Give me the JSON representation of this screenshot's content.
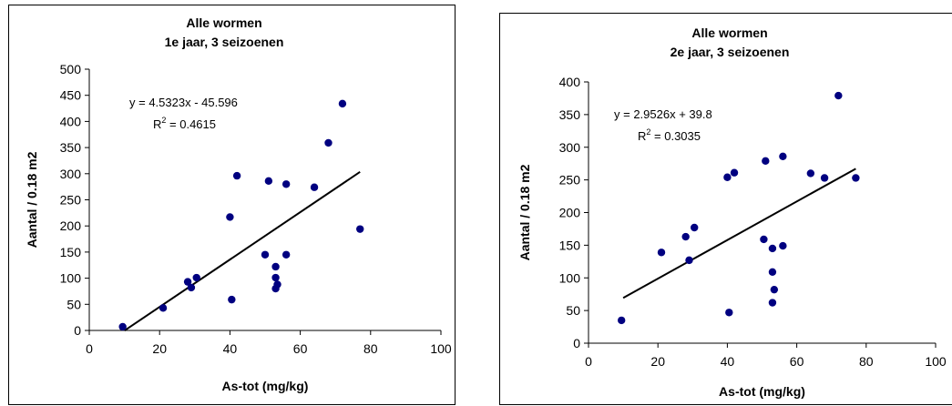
{
  "chart_data": [
    {
      "type": "scatter",
      "title": "Alle wormen",
      "subtitle": "1e jaar, 3 seizoenen",
      "xlabel": "As-tot (mg/kg)",
      "ylabel": "Aantal / 0.18 m2",
      "xlim": [
        0,
        100
      ],
      "ylim": [
        0,
        500
      ],
      "xticks": [
        "0",
        "20",
        "40",
        "60",
        "80",
        "100"
      ],
      "yticks": [
        "0",
        "50",
        "100",
        "150",
        "200",
        "250",
        "300",
        "350",
        "400",
        "450",
        "500"
      ],
      "grid": false,
      "legend": "none",
      "marker_color": "#000080",
      "trendline": {
        "slope": 4.5323,
        "intercept": -45.596,
        "x_range": [
          10,
          77
        ]
      },
      "equation": "y = 4.5323x - 45.596",
      "r2_label": "R",
      "r2_sup": "2",
      "r2_value": " = 0.4615",
      "points": [
        [
          9.5,
          7
        ],
        [
          21,
          43
        ],
        [
          28,
          93
        ],
        [
          29,
          82
        ],
        [
          30.5,
          101
        ],
        [
          40,
          217
        ],
        [
          40.5,
          59
        ],
        [
          42,
          296
        ],
        [
          50,
          145
        ],
        [
          51,
          286
        ],
        [
          53,
          122
        ],
        [
          53,
          101
        ],
        [
          53,
          80
        ],
        [
          53.5,
          88
        ],
        [
          56,
          145
        ],
        [
          56,
          280
        ],
        [
          64,
          274
        ],
        [
          68,
          359
        ],
        [
          72,
          434
        ],
        [
          77,
          194
        ]
      ]
    },
    {
      "type": "scatter",
      "title": "Alle wormen",
      "subtitle": "2e jaar, 3 seizoenen",
      "xlabel": "As-tot (mg/kg)",
      "ylabel": "Aantal / 0.18 m2",
      "xlim": [
        0,
        100
      ],
      "ylim": [
        0,
        400
      ],
      "xticks": [
        "0",
        "20",
        "40",
        "60",
        "80",
        "100"
      ],
      "yticks": [
        "0",
        "50",
        "100",
        "150",
        "200",
        "250",
        "300",
        "350",
        "400"
      ],
      "grid": false,
      "legend": "none",
      "marker_color": "#000080",
      "trendline": {
        "slope": 2.9526,
        "intercept": 39.8,
        "x_range": [
          10,
          77
        ]
      },
      "equation": "y = 2.9526x + 39.8",
      "r2_label": "R",
      "r2_sup": "2",
      "r2_value": " = 0.3035",
      "points": [
        [
          9.5,
          35
        ],
        [
          21,
          139
        ],
        [
          28,
          163
        ],
        [
          29,
          127
        ],
        [
          30.5,
          177
        ],
        [
          40,
          254
        ],
        [
          40.5,
          47
        ],
        [
          42,
          261
        ],
        [
          50.5,
          159
        ],
        [
          51,
          279
        ],
        [
          53,
          145
        ],
        [
          53,
          109
        ],
        [
          53.5,
          82
        ],
        [
          53,
          62
        ],
        [
          56,
          149
        ],
        [
          56,
          286
        ],
        [
          64,
          260
        ],
        [
          68,
          253
        ],
        [
          72,
          379
        ],
        [
          77,
          253
        ]
      ]
    }
  ]
}
